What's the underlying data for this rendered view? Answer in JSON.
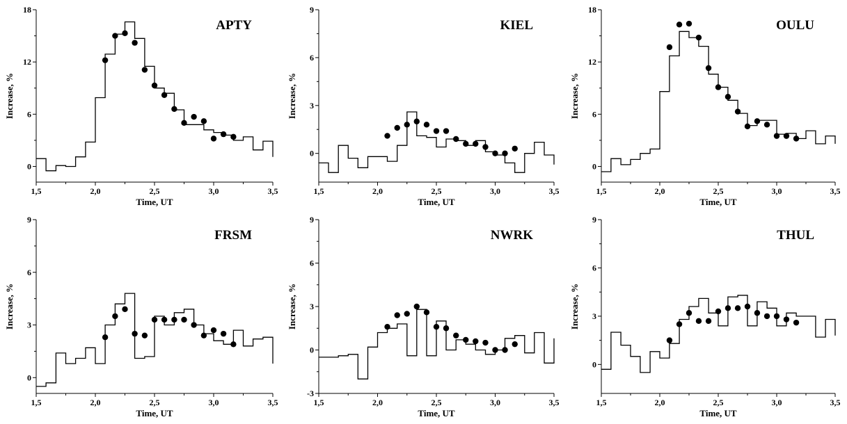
{
  "figure": {
    "colors": {
      "line": "#000000",
      "marker": "#000000",
      "background": "#ffffff"
    }
  },
  "chart_data": [
    {
      "type": "line",
      "station": "APTY",
      "xlabel": "Time, UT",
      "ylabel": "Increase, %",
      "xlim": [
        1.5,
        3.5
      ],
      "ylim": [
        -1.8,
        18
      ],
      "xticks": [
        "1,5",
        "2,0",
        "2,5",
        "3,0",
        "3,5"
      ],
      "xtick_values": [
        1.5,
        2.0,
        2.5,
        3.0,
        3.5
      ],
      "yticks": [
        "0",
        "6",
        "12",
        "18"
      ],
      "ytick_values": [
        0,
        6,
        12,
        18
      ],
      "series": [
        {
          "style": "step",
          "x": [
            1.5,
            1.583,
            1.667,
            1.75,
            1.833,
            1.917,
            2.0,
            2.083,
            2.167,
            2.25,
            2.333,
            2.417,
            2.5,
            2.583,
            2.667,
            2.75,
            2.833,
            2.917,
            3.0,
            3.083,
            3.167,
            3.25,
            3.333,
            3.417,
            3.5
          ],
          "y": [
            0.9,
            -0.5,
            0.1,
            0.0,
            1.1,
            2.8,
            7.9,
            12.9,
            15.2,
            16.6,
            14.7,
            11.5,
            9.0,
            8.4,
            6.5,
            4.8,
            4.8,
            4.2,
            3.9,
            3.6,
            3.0,
            3.4,
            1.9,
            2.9,
            1.1
          ]
        },
        {
          "style": "points",
          "x": [
            2.083,
            2.167,
            2.25,
            2.333,
            2.417,
            2.5,
            2.583,
            2.667,
            2.75,
            2.833,
            2.917,
            3.0,
            3.083,
            3.167
          ],
          "y": [
            12.2,
            15.0,
            15.3,
            14.2,
            11.1,
            9.3,
            8.2,
            6.6,
            5.0,
            5.7,
            5.2,
            3.2,
            3.7,
            3.4
          ]
        }
      ]
    },
    {
      "type": "line",
      "station": "KIEL",
      "xlabel": "Time, UT",
      "ylabel": "Increase, %",
      "xlim": [
        1.5,
        3.5
      ],
      "ylim": [
        -1.8,
        9
      ],
      "xticks": [
        "1,5",
        "2,0",
        "2,5",
        "3,0",
        "3,5"
      ],
      "xtick_values": [
        1.5,
        2.0,
        2.5,
        3.0,
        3.5
      ],
      "yticks": [
        "0",
        "3",
        "6",
        "9"
      ],
      "ytick_values": [
        0,
        3,
        6,
        9
      ],
      "series": [
        {
          "style": "step",
          "x": [
            1.5,
            1.583,
            1.667,
            1.75,
            1.833,
            1.917,
            2.0,
            2.083,
            2.167,
            2.25,
            2.333,
            2.417,
            2.5,
            2.583,
            2.667,
            2.75,
            2.833,
            2.917,
            3.0,
            3.083,
            3.167,
            3.25,
            3.333,
            3.417,
            3.5
          ],
          "y": [
            -0.6,
            -1.2,
            0.5,
            -0.3,
            -0.9,
            -0.2,
            -0.2,
            -0.5,
            0.5,
            2.6,
            1.1,
            1.0,
            0.4,
            0.9,
            0.8,
            0.5,
            0.8,
            0.1,
            -0.1,
            -0.6,
            -1.2,
            0.0,
            0.7,
            -0.1,
            -0.7
          ]
        },
        {
          "style": "points",
          "x": [
            2.083,
            2.167,
            2.25,
            2.333,
            2.417,
            2.5,
            2.583,
            2.667,
            2.75,
            2.833,
            2.917,
            3.0,
            3.083,
            3.167
          ],
          "y": [
            1.1,
            1.6,
            1.8,
            2.0,
            1.8,
            1.4,
            1.4,
            0.9,
            0.6,
            0.6,
            0.4,
            0.0,
            0.0,
            0.3
          ]
        }
      ]
    },
    {
      "type": "line",
      "station": "OULU",
      "xlabel": "Time, UT",
      "ylabel": "Increase, %",
      "xlim": [
        1.5,
        3.5
      ],
      "ylim": [
        -1.8,
        18
      ],
      "xticks": [
        "1,5",
        "2,0",
        "2,5",
        "3,0",
        "3,5"
      ],
      "xtick_values": [
        1.5,
        2.0,
        2.5,
        3.0,
        3.5
      ],
      "yticks": [
        "0",
        "6",
        "12",
        "18"
      ],
      "ytick_values": [
        0,
        6,
        12,
        18
      ],
      "series": [
        {
          "style": "step",
          "x": [
            1.5,
            1.583,
            1.667,
            1.75,
            1.833,
            1.917,
            2.0,
            2.083,
            2.167,
            2.25,
            2.333,
            2.417,
            2.5,
            2.583,
            2.667,
            2.75,
            2.833,
            2.917,
            3.0,
            3.083,
            3.167,
            3.25,
            3.333,
            3.417,
            3.5
          ],
          "y": [
            -0.6,
            0.9,
            0.2,
            0.8,
            1.5,
            2.0,
            8.6,
            12.7,
            15.5,
            14.8,
            13.8,
            10.6,
            9.1,
            7.6,
            6.1,
            4.7,
            5.3,
            5.3,
            3.7,
            3.8,
            3.2,
            4.1,
            2.6,
            3.5,
            2.6
          ]
        },
        {
          "style": "points",
          "x": [
            2.083,
            2.167,
            2.25,
            2.333,
            2.417,
            2.5,
            2.583,
            2.667,
            2.75,
            2.833,
            2.917,
            3.0,
            3.083,
            3.167
          ],
          "y": [
            13.7,
            16.3,
            16.4,
            14.8,
            11.3,
            9.1,
            8.0,
            6.3,
            4.6,
            5.2,
            4.8,
            3.5,
            3.5,
            3.2
          ]
        }
      ]
    },
    {
      "type": "line",
      "station": "FRSM",
      "xlabel": "Time, UT",
      "ylabel": "Increase, %",
      "xlim": [
        1.5,
        3.5
      ],
      "ylim": [
        -0.9,
        9
      ],
      "xticks": [
        "1,5",
        "2,0",
        "2,5",
        "3,0",
        "3,5"
      ],
      "xtick_values": [
        1.5,
        2.0,
        2.5,
        3.0,
        3.5
      ],
      "yticks": [
        "0",
        "3",
        "6",
        "9"
      ],
      "ytick_values": [
        0,
        3,
        6,
        9
      ],
      "series": [
        {
          "style": "step",
          "x": [
            1.5,
            1.583,
            1.667,
            1.75,
            1.833,
            1.917,
            2.0,
            2.083,
            2.167,
            2.25,
            2.333,
            2.417,
            2.5,
            2.583,
            2.667,
            2.75,
            2.833,
            2.917,
            3.0,
            3.083,
            3.167,
            3.25,
            3.333,
            3.417,
            3.5
          ],
          "y": [
            -0.5,
            -0.3,
            1.4,
            0.8,
            1.1,
            1.7,
            0.8,
            3.0,
            4.2,
            4.8,
            1.1,
            1.2,
            3.5,
            3.0,
            3.7,
            3.9,
            3.0,
            2.5,
            2.1,
            1.9,
            2.7,
            1.8,
            2.2,
            2.3,
            0.8
          ]
        },
        {
          "style": "points",
          "x": [
            2.083,
            2.167,
            2.25,
            2.333,
            2.417,
            2.5,
            2.583,
            2.667,
            2.75,
            2.833,
            2.917,
            3.0,
            3.083,
            3.167
          ],
          "y": [
            2.3,
            3.5,
            3.9,
            2.5,
            2.4,
            3.3,
            3.3,
            3.3,
            3.3,
            3.0,
            2.4,
            2.7,
            2.5,
            1.9
          ]
        }
      ]
    },
    {
      "type": "line",
      "station": "NWRK",
      "xlabel": "Time, UT",
      "ylabel": "Increase, %",
      "xlim": [
        1.5,
        3.5
      ],
      "ylim": [
        -3,
        9
      ],
      "xticks": [
        "1,5",
        "2,0",
        "2,5",
        "3,0",
        "3,5"
      ],
      "xtick_values": [
        1.5,
        2.0,
        2.5,
        3.0,
        3.5
      ],
      "yticks": [
        "-3",
        "0",
        "3",
        "6",
        "9"
      ],
      "ytick_values": [
        -3,
        0,
        3,
        6,
        9
      ],
      "series": [
        {
          "style": "step",
          "x": [
            1.5,
            1.583,
            1.667,
            1.75,
            1.833,
            1.917,
            2.0,
            2.083,
            2.167,
            2.25,
            2.333,
            2.417,
            2.5,
            2.583,
            2.667,
            2.75,
            2.833,
            2.917,
            3.0,
            3.083,
            3.167,
            3.25,
            3.333,
            3.417,
            3.5
          ],
          "y": [
            -0.5,
            -0.5,
            -0.4,
            -0.3,
            -2.0,
            0.2,
            1.2,
            1.5,
            1.8,
            -0.4,
            2.8,
            -0.4,
            2.0,
            0.0,
            0.7,
            0.4,
            0.0,
            -0.3,
            0.0,
            0.8,
            1.0,
            -0.2,
            1.2,
            -0.9,
            0.8
          ]
        },
        {
          "style": "points",
          "x": [
            2.083,
            2.167,
            2.25,
            2.333,
            2.417,
            2.5,
            2.583,
            2.667,
            2.75,
            2.833,
            2.917,
            3.0,
            3.083,
            3.167
          ],
          "y": [
            1.6,
            2.4,
            2.5,
            3.0,
            2.6,
            1.6,
            1.5,
            1.0,
            0.7,
            0.6,
            0.5,
            0.0,
            0.0,
            0.4
          ]
        }
      ]
    },
    {
      "type": "line",
      "station": "THUL",
      "xlabel": "Time, UT",
      "ylabel": "Increase, %",
      "xlim": [
        1.5,
        3.5
      ],
      "ylim": [
        -1.8,
        9
      ],
      "xticks": [
        "1,5",
        "2,0",
        "2,5",
        "3,0",
        "3,5"
      ],
      "xtick_values": [
        1.5,
        2.0,
        2.5,
        3.0,
        3.5
      ],
      "yticks": [
        "0",
        "3",
        "6",
        "9"
      ],
      "ytick_values": [
        0,
        3,
        6,
        9
      ],
      "series": [
        {
          "style": "step",
          "x": [
            1.5,
            1.583,
            1.667,
            1.75,
            1.833,
            1.917,
            2.0,
            2.083,
            2.167,
            2.25,
            2.333,
            2.417,
            2.5,
            2.583,
            2.667,
            2.75,
            2.833,
            2.917,
            3.0,
            3.083,
            3.167,
            3.25,
            3.333,
            3.417,
            3.5
          ],
          "y": [
            -0.3,
            2.0,
            1.2,
            0.5,
            -0.5,
            0.8,
            0.4,
            1.3,
            2.8,
            3.6,
            4.1,
            3.2,
            2.4,
            4.2,
            4.3,
            2.4,
            3.9,
            3.5,
            2.4,
            3.2,
            3.0,
            3.0,
            1.7,
            2.8,
            1.8
          ]
        },
        {
          "style": "points",
          "x": [
            2.083,
            2.167,
            2.25,
            2.333,
            2.417,
            2.5,
            2.583,
            2.667,
            2.75,
            2.833,
            2.917,
            3.0,
            3.083,
            3.167
          ],
          "y": [
            1.5,
            2.5,
            3.2,
            2.7,
            2.7,
            3.3,
            3.5,
            3.5,
            3.6,
            3.2,
            3.0,
            3.0,
            2.8,
            2.6
          ]
        }
      ]
    }
  ]
}
